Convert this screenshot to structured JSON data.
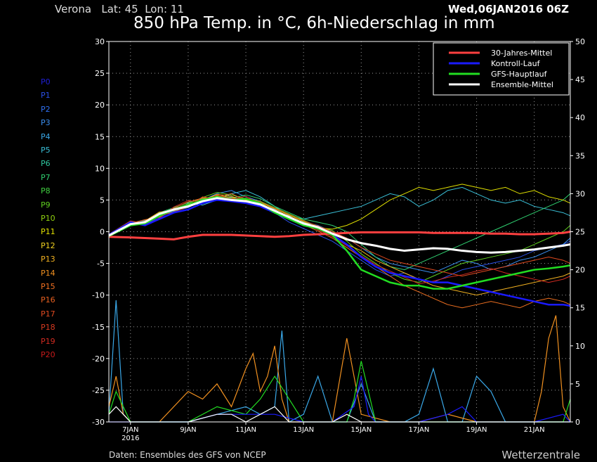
{
  "header": {
    "station": "Verona   Lat: 45  Lon: 11",
    "run": "Wed,06JAN2016 06Z",
    "title": "850 hPa Temp. in °C, 6h-Niederschlag in mm"
  },
  "footer": {
    "source": "Daten: Ensembles des GFS von NCEP",
    "brand": "Wetterzentrale"
  },
  "members": [
    {
      "label": "P0",
      "color": "#1f1fd8"
    },
    {
      "label": "P1",
      "color": "#2a4fe6"
    },
    {
      "label": "P2",
      "color": "#2f6ff0"
    },
    {
      "label": "P3",
      "color": "#3a8ff0"
    },
    {
      "label": "P4",
      "color": "#3aa8e8"
    },
    {
      "label": "P5",
      "color": "#3ac0d8"
    },
    {
      "label": "P6",
      "color": "#2fc8a0"
    },
    {
      "label": "P7",
      "color": "#2fd070"
    },
    {
      "label": "P8",
      "color": "#40d040"
    },
    {
      "label": "P9",
      "color": "#60d020"
    },
    {
      "label": "P10",
      "color": "#90d010"
    },
    {
      "label": "P11",
      "color": "#e0e000"
    },
    {
      "label": "P12",
      "color": "#f0d020"
    },
    {
      "label": "P13",
      "color": "#f0b020"
    },
    {
      "label": "P14",
      "color": "#f09020"
    },
    {
      "label": "P15",
      "color": "#f07020"
    },
    {
      "label": "P16",
      "color": "#e86020"
    },
    {
      "label": "P17",
      "color": "#e04a20"
    },
    {
      "label": "P18",
      "color": "#d83a20"
    },
    {
      "label": "P19",
      "color": "#d02a20"
    },
    {
      "label": "P20",
      "color": "#c81a1a"
    }
  ],
  "chart_data": {
    "type": "line",
    "title": "850 hPa Temp. in °C, 6h-Niederschlag in mm",
    "ylim": [
      -30,
      30
    ],
    "y_ticks": [
      30,
      25,
      20,
      15,
      10,
      5,
      0,
      -5,
      -10,
      -15,
      -20,
      -25,
      -30
    ],
    "y2lim": [
      0,
      50
    ],
    "y2_ticks": [
      50,
      45,
      40,
      35,
      30,
      25,
      20,
      15,
      10,
      5,
      0
    ],
    "x_tick_labels": [
      "7JAN",
      "9JAN",
      "11JAN",
      "13JAN",
      "15JAN",
      "17JAN",
      "19JAN",
      "21JAN"
    ],
    "x_sub_label": "2016",
    "xlim_days": [
      6.25,
      22.25
    ],
    "grid": true,
    "legend_position": "top-right",
    "legend": [
      {
        "name": "30-Jahres-Mittel",
        "color": "#ff4040"
      },
      {
        "name": "Kontroll-Lauf",
        "color": "#1a1aff"
      },
      {
        "name": "GFS-Hauptlauf",
        "color": "#22dd22"
      },
      {
        "name": "Ensemble-Mittel",
        "color": "#ffffff"
      }
    ],
    "x_days": [
      6.25,
      7,
      7.5,
      8,
      8.5,
      9,
      9.5,
      10,
      10.5,
      11,
      11.5,
      12,
      12.5,
      13,
      13.5,
      14,
      14.5,
      15,
      15.5,
      16,
      16.5,
      17,
      17.5,
      18,
      18.5,
      19,
      19.5,
      20,
      20.5,
      21,
      21.5,
      22,
      22.25
    ],
    "series": [
      {
        "name": "30-Jahres-Mittel",
        "color": "#ff4040",
        "width": 3,
        "values": [
          -0.8,
          -0.9,
          -1.0,
          -1.1,
          -1.2,
          -0.8,
          -0.5,
          -0.5,
          -0.5,
          -0.6,
          -0.7,
          -0.8,
          -0.7,
          -0.5,
          -0.4,
          -0.3,
          -0.2,
          -0.1,
          -0.1,
          -0.1,
          -0.1,
          -0.1,
          -0.2,
          -0.2,
          -0.2,
          -0.2,
          -0.3,
          -0.3,
          -0.4,
          -0.4,
          -0.3,
          -0.2,
          0.0
        ]
      },
      {
        "name": "Kontroll-Lauf",
        "color": "#1a1aff",
        "width": 2.5,
        "values": [
          -0.5,
          1.5,
          1.0,
          2.0,
          3.0,
          3.5,
          4.5,
          5.0,
          4.8,
          4.5,
          4.0,
          3.0,
          2.0,
          1.0,
          0.5,
          -0.5,
          -2.0,
          -4.0,
          -5.5,
          -6.5,
          -7.0,
          -7.5,
          -8.0,
          -8.0,
          -8.5,
          -9.0,
          -9.5,
          -10.0,
          -10.5,
          -11.0,
          -11.5,
          -11.5,
          -11.7
        ]
      },
      {
        "name": "GFS-Hauptlauf",
        "color": "#22dd22",
        "width": 2.5,
        "values": [
          -0.7,
          1.0,
          1.3,
          2.5,
          3.5,
          4.2,
          5.0,
          5.5,
          5.0,
          5.2,
          4.5,
          3.0,
          2.0,
          1.0,
          0.5,
          -0.5,
          -3.0,
          -6.0,
          -7.0,
          -8.0,
          -8.5,
          -8.5,
          -9.0,
          -9.0,
          -8.5,
          -8.0,
          -7.5,
          -7.0,
          -6.5,
          -6.0,
          -5.8,
          -5.5,
          -5.3
        ]
      },
      {
        "name": "Ensemble-Mittel",
        "color": "#ffffff",
        "width": 3,
        "values": [
          -0.6,
          1.2,
          1.5,
          2.8,
          3.5,
          4.0,
          4.8,
          5.3,
          5.0,
          4.8,
          4.3,
          3.3,
          2.3,
          1.3,
          0.7,
          -0.3,
          -1.2,
          -1.8,
          -2.2,
          -2.7,
          -3.0,
          -2.8,
          -2.6,
          -2.7,
          -3.0,
          -3.2,
          -3.3,
          -3.2,
          -3.0,
          -2.8,
          -2.5,
          -2.2,
          -2.0
        ]
      },
      {
        "name": "P1",
        "color": "#2a4fe6",
        "width": 1,
        "values": [
          -0.5,
          1.6,
          1.2,
          2.2,
          3.4,
          4.0,
          4.6,
          5.4,
          5.5,
          5.0,
          4.2,
          3.0,
          1.5,
          0.5,
          -0.5,
          -1.5,
          -3.0,
          -4.5,
          -6.0,
          -7.0,
          -6.5,
          -7.5,
          -8.0,
          -7.0,
          -6.0,
          -5.5,
          -5.0,
          -4.5,
          -4.0,
          -3.0,
          -2.5,
          -2.0,
          -1.5
        ]
      },
      {
        "name": "P3",
        "color": "#3a8ff0",
        "width": 1,
        "values": [
          -0.4,
          1.4,
          1.8,
          2.6,
          3.2,
          3.8,
          5.0,
          6.0,
          6.5,
          5.5,
          4.8,
          3.5,
          2.2,
          1.5,
          1.0,
          0.0,
          -1.0,
          -2.5,
          -4.0,
          -5.0,
          -5.5,
          -6.0,
          -6.5,
          -5.5,
          -4.5,
          -5.0,
          -6.0,
          -5.5,
          -4.5,
          -4.0,
          -3.0,
          -2.0,
          -1.0
        ]
      },
      {
        "name": "P5",
        "color": "#3ac0d8",
        "width": 1,
        "values": [
          -0.6,
          1.3,
          1.0,
          2.7,
          3.0,
          4.5,
          4.2,
          5.0,
          6.0,
          6.5,
          5.5,
          4.0,
          2.5,
          2.0,
          2.5,
          3.0,
          3.5,
          4.0,
          5.0,
          6.0,
          5.5,
          4.0,
          5.0,
          6.5,
          7.0,
          6.0,
          5.0,
          4.5,
          5.0,
          4.0,
          3.5,
          3.0,
          2.5
        ]
      },
      {
        "name": "P7",
        "color": "#2fd070",
        "width": 1,
        "values": [
          -0.8,
          1.0,
          1.5,
          3.0,
          3.8,
          4.6,
          5.2,
          5.6,
          5.3,
          5.8,
          5.2,
          4.0,
          3.0,
          2.0,
          1.5,
          1.0,
          0.0,
          -2.0,
          -4.0,
          -5.5,
          -6.0,
          -5.0,
          -4.0,
          -3.0,
          -2.0,
          -1.0,
          0.0,
          1.0,
          2.0,
          3.0,
          4.0,
          5.0,
          6.0
        ]
      },
      {
        "name": "P9",
        "color": "#60d020",
        "width": 1,
        "values": [
          -0.7,
          1.2,
          1.6,
          2.4,
          3.6,
          4.4,
          5.4,
          6.2,
          5.8,
          5.2,
          4.8,
          3.8,
          2.8,
          1.8,
          0.8,
          0.2,
          -1.5,
          -3.5,
          -5.0,
          -6.5,
          -7.5,
          -8.0,
          -7.0,
          -6.0,
          -5.0,
          -4.5,
          -4.0,
          -3.5,
          -3.0,
          -2.0,
          -1.0,
          0.0,
          1.0
        ]
      },
      {
        "name": "P11",
        "color": "#e0e000",
        "width": 1,
        "values": [
          -0.5,
          1.5,
          1.4,
          2.9,
          3.4,
          4.3,
          5.1,
          5.7,
          5.4,
          5.0,
          4.6,
          3.6,
          2.6,
          1.6,
          0.6,
          0.4,
          1.0,
          2.0,
          3.5,
          5.0,
          6.0,
          7.0,
          6.5,
          7.0,
          7.5,
          7.0,
          6.5,
          7.0,
          6.0,
          6.5,
          5.5,
          5.0,
          4.5
        ]
      },
      {
        "name": "P13",
        "color": "#f0b020",
        "width": 1,
        "values": [
          -0.6,
          1.1,
          1.7,
          3.1,
          3.3,
          4.1,
          4.9,
          5.9,
          5.6,
          4.7,
          4.4,
          3.4,
          2.4,
          1.4,
          0.4,
          -0.6,
          -2.0,
          -3.0,
          -4.5,
          -5.5,
          -6.5,
          -7.5,
          -8.5,
          -9.0,
          -9.5,
          -10.0,
          -9.5,
          -9.0,
          -8.5,
          -8.0,
          -7.5,
          -7.0,
          -6.5
        ]
      },
      {
        "name": "P15",
        "color": "#f07020",
        "width": 1,
        "values": [
          -0.7,
          1.3,
          1.9,
          2.3,
          3.7,
          4.7,
          5.3,
          5.5,
          6.0,
          4.9,
          4.1,
          3.1,
          2.1,
          1.1,
          0.1,
          -1.0,
          -2.5,
          -4.0,
          -5.5,
          -7.0,
          -8.5,
          -9.5,
          -10.5,
          -11.5,
          -12.0,
          -11.5,
          -11.0,
          -11.5,
          -12.0,
          -11.0,
          -10.5,
          -11.0,
          -11.5
        ]
      },
      {
        "name": "P17",
        "color": "#e04a20",
        "width": 1,
        "values": [
          -0.4,
          1.7,
          1.3,
          2.5,
          3.1,
          3.9,
          5.5,
          5.1,
          5.2,
          5.3,
          4.7,
          3.7,
          2.7,
          1.7,
          0.9,
          0.0,
          -1.0,
          -2.5,
          -3.5,
          -4.5,
          -5.0,
          -5.5,
          -6.0,
          -6.5,
          -7.0,
          -6.5,
          -6.0,
          -5.5,
          -5.0,
          -4.5,
          -4.0,
          -4.5,
          -5.0
        ]
      },
      {
        "name": "P19",
        "color": "#d02a20",
        "width": 1,
        "values": [
          -0.8,
          1.4,
          1.1,
          2.1,
          3.9,
          4.9,
          4.7,
          5.8,
          5.1,
          5.6,
          4.3,
          3.3,
          2.3,
          1.3,
          0.3,
          -0.8,
          -2.2,
          -3.8,
          -5.2,
          -6.2,
          -7.2,
          -8.2,
          -7.8,
          -7.2,
          -6.8,
          -6.2,
          -5.8,
          -6.5,
          -7.0,
          -7.5,
          -8.0,
          -7.5,
          -7.0
        ]
      }
    ],
    "precipitation": [
      {
        "name": "P4",
        "color": "#3aa8e8",
        "x_days": [
          6.25,
          6.5,
          6.75,
          7.0,
          7.25,
          7.5,
          8,
          9,
          10,
          11,
          11.5,
          12,
          12.25,
          12.5,
          13,
          13.5,
          14,
          14.5,
          15,
          15.5,
          16,
          16.5,
          17,
          17.5,
          18,
          18.5,
          19,
          19.5,
          20,
          21,
          21.5,
          22,
          22.25
        ],
        "values": [
          1,
          16,
          1,
          0,
          0,
          0,
          0,
          0,
          1,
          2,
          1,
          2,
          12,
          0,
          1,
          6,
          0,
          0,
          5,
          0,
          0,
          0,
          1,
          7,
          0,
          0,
          6,
          4,
          0,
          0,
          0,
          0,
          0
        ]
      },
      {
        "name": "P14",
        "color": "#f09020",
        "x_days": [
          6.25,
          6.5,
          6.75,
          7.0,
          8,
          9,
          9.5,
          10,
          10.5,
          11,
          11.25,
          11.5,
          11.75,
          12,
          12.25,
          12.5,
          13,
          14,
          14.5,
          15,
          16,
          17,
          18,
          19,
          20,
          21,
          21.25,
          21.5,
          21.75,
          22,
          22.25
        ],
        "values": [
          2,
          6,
          1,
          0,
          0,
          4,
          3,
          5,
          2,
          7,
          9,
          4,
          6,
          10,
          3,
          0,
          0,
          0,
          11,
          1,
          0,
          0,
          1,
          0,
          0,
          0,
          4,
          11,
          14,
          2,
          0
        ]
      },
      {
        "name": "GFS-Hauptlauf",
        "color": "#22dd22",
        "x_days": [
          6.25,
          6.5,
          7,
          8,
          9,
          10,
          11,
          11.5,
          12,
          13,
          14,
          14.5,
          14.75,
          15.0,
          15.25,
          15.5,
          16,
          17,
          18,
          19,
          20,
          21,
          22,
          22.25
        ],
        "values": [
          1,
          4,
          0,
          0,
          0,
          2,
          1,
          3,
          6,
          0,
          0,
          0,
          3,
          8,
          4,
          0,
          0,
          0,
          0,
          0,
          0,
          0,
          0,
          3
        ]
      },
      {
        "name": "Kontroll-Lauf",
        "color": "#1a1aff",
        "x_days": [
          6.25,
          7,
          8,
          9,
          10,
          11,
          12,
          13,
          14,
          14.75,
          15.0,
          15.25,
          15.5,
          16,
          17,
          18,
          18.5,
          19,
          20,
          21,
          22,
          22.25
        ],
        "values": [
          0,
          0,
          0,
          0,
          1,
          1,
          1,
          0,
          0,
          2,
          6,
          1,
          0,
          0,
          0,
          1,
          2,
          0,
          0,
          0,
          1,
          0
        ]
      },
      {
        "name": "Ensemble-Mittel",
        "color": "#ffffff",
        "x_days": [
          6.25,
          6.5,
          6.75,
          7,
          8,
          9,
          10,
          10.5,
          11,
          11.5,
          12,
          12.5,
          13,
          14,
          14.5,
          15,
          15.5,
          16,
          17,
          18,
          19,
          20,
          21,
          22,
          22.25
        ],
        "values": [
          1,
          2,
          1,
          0,
          0,
          0,
          1,
          1,
          0,
          1,
          2,
          0,
          0,
          0,
          1,
          0,
          0,
          0,
          0,
          0,
          0,
          0,
          0,
          0,
          0
        ]
      }
    ]
  }
}
